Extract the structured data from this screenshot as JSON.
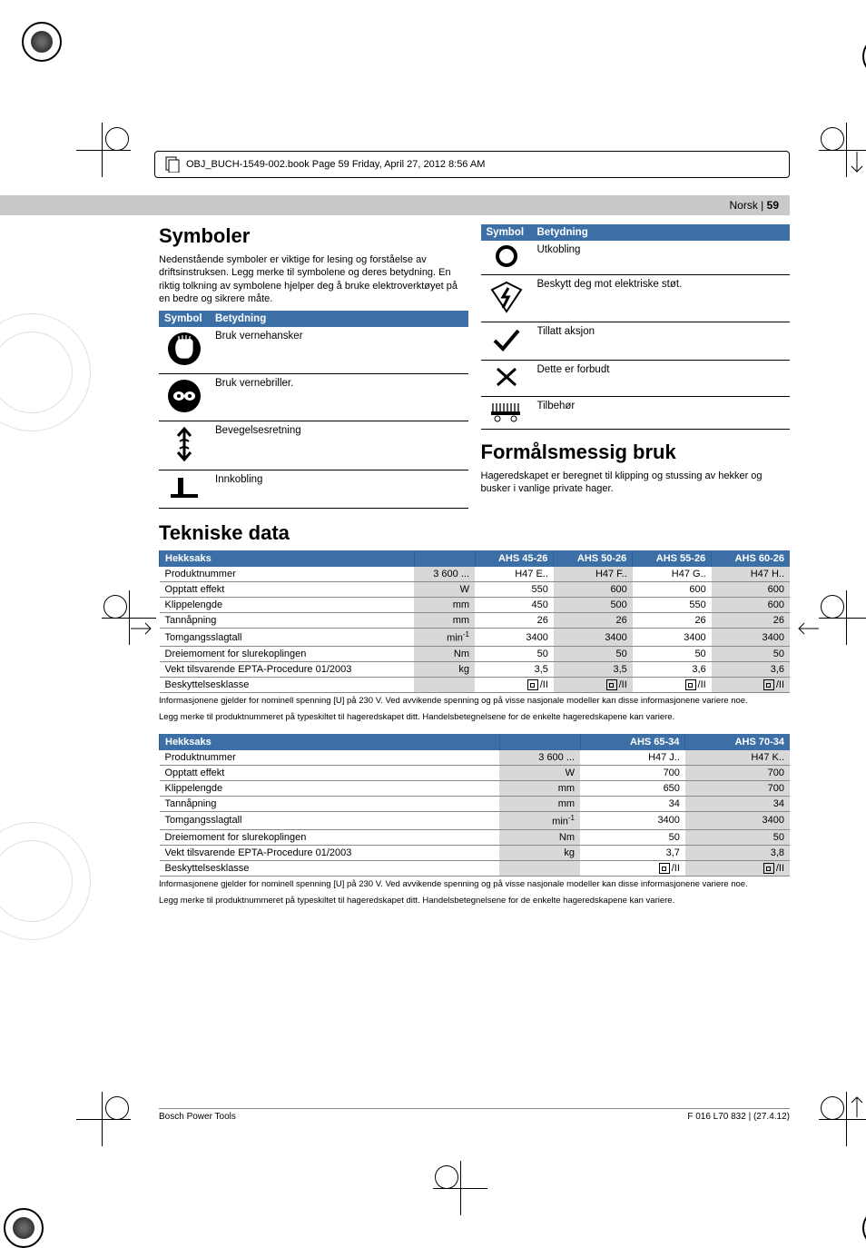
{
  "header_bar": "OBJ_BUCH-1549-002.book  Page 59  Friday, April 27, 2012  8:56 AM",
  "page_label_pre": "Norsk | ",
  "page_label_num": "59",
  "symboler": {
    "title": "Symboler",
    "intro": "Nedenstående symboler er viktige for lesing og forståelse av driftsinstruksen. Legg merke til symbolene og deres betydning. En riktig tolkning av symbolene hjelper deg å bruke elektroverktøyet på en bedre og sikrere måte.",
    "head_symbol": "Symbol",
    "head_meaning": "Betydning",
    "left_rows": [
      "Bruk vernehansker",
      "Bruk vernebriller.",
      "Bevegelsesretning",
      "Innkobling"
    ],
    "right_rows": [
      "Utkobling",
      "Beskytt deg mot elektriske støt.",
      "Tillatt aksjon",
      "Dette er forbudt",
      "Tilbehør"
    ]
  },
  "purpose": {
    "title": "Formålsmessig bruk",
    "text": "Hageredskapet er beregnet til klipping og stussing av hekker og busker i vanlige private hager."
  },
  "tekniske_title": "Tekniske data",
  "table1": {
    "head": [
      "Hekksaks",
      "",
      "AHS 45-26",
      "AHS 50-26",
      "AHS 55-26",
      "AHS 60-26"
    ],
    "rows": [
      [
        "Produktnummer",
        "3 600 ...",
        "H47 E..",
        "H47 F..",
        "H47 G..",
        "H47 H.."
      ],
      [
        "Opptatt effekt",
        "W",
        "550",
        "600",
        "600",
        "600"
      ],
      [
        "Klippelengde",
        "mm",
        "450",
        "500",
        "550",
        "600"
      ],
      [
        "Tannåpning",
        "mm",
        "26",
        "26",
        "26",
        "26"
      ],
      [
        "Tomgangsslagtall",
        "min⁻¹",
        "3400",
        "3400",
        "3400",
        "3400"
      ],
      [
        "Dreiemoment for slurekoplingen",
        "Nm",
        "50",
        "50",
        "50",
        "50"
      ],
      [
        "Vekt tilsvarende EPTA-Procedure 01/2003",
        "kg",
        "3,5",
        "3,5",
        "3,6",
        "3,6"
      ],
      [
        "Beskyttelsesklasse",
        "",
        "□/II",
        "□/II",
        "□/II",
        "□/II"
      ]
    ]
  },
  "table2": {
    "head": [
      "Hekksaks",
      "",
      "AHS 65-34",
      "AHS 70-34"
    ],
    "rows": [
      [
        "Produktnummer",
        "3 600 ...",
        "H47 J..",
        "H47 K.."
      ],
      [
        "Opptatt effekt",
        "W",
        "700",
        "700"
      ],
      [
        "Klippelengde",
        "mm",
        "650",
        "700"
      ],
      [
        "Tannåpning",
        "mm",
        "34",
        "34"
      ],
      [
        "Tomgangsslagtall",
        "min⁻¹",
        "3400",
        "3400"
      ],
      [
        "Dreiemoment for slurekoplingen",
        "Nm",
        "50",
        "50"
      ],
      [
        "Vekt tilsvarende EPTA-Procedure 01/2003",
        "kg",
        "3,7",
        "3,8"
      ],
      [
        "Beskyttelsesklasse",
        "",
        "□/II",
        "□/II"
      ]
    ]
  },
  "fine1": "Informasjonene gjelder for nominell spenning [U] på 230 V. Ved avvikende spenning og på visse nasjonale modeller kan disse informasjonene variere noe.",
  "fine2": "Legg merke til produktnummeret på typeskiltet til hageredskapet ditt. Handelsbetegnelsene for de enkelte hageredskapene kan variere.",
  "footer_left": "Bosch Power Tools",
  "footer_right": "F 016 L70 832 | (27.4.12)",
  "colors": {
    "header_bg": "#3c6fa5",
    "unit_bg": "#d8d8d8",
    "banner_bg": "#c9c9c9"
  }
}
